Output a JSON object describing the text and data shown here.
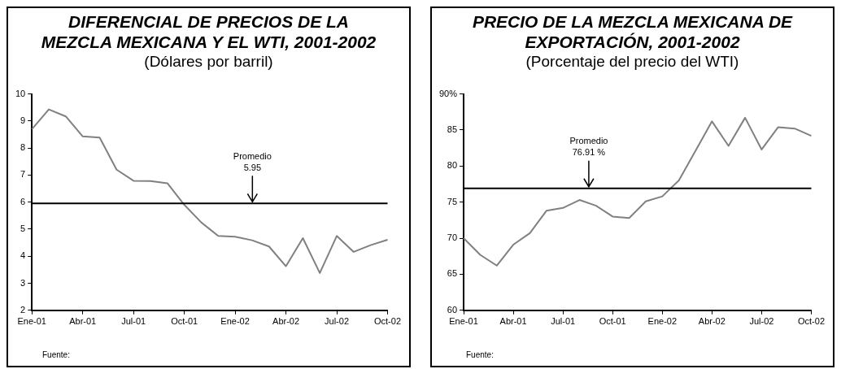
{
  "chart_data": [
    {
      "type": "line",
      "title": "DIFERENCIAL DE PRECIOS DE LA MEZCLA MEXICANA Y EL WTI, 2001-2002",
      "subtitle": "(Dólares por barril)",
      "categories": [
        "Ene-01",
        null,
        null,
        "Abr-01",
        null,
        null,
        "Jul-01",
        null,
        null,
        "Oct-01",
        null,
        null,
        "Ene-02",
        null,
        null,
        "Abr-02",
        null,
        null,
        "Jul-02",
        null,
        null,
        "Oct-02"
      ],
      "series": [
        {
          "color": "#808080",
          "values": [
            8.7,
            9.43,
            9.17,
            8.43,
            8.39,
            7.2,
            6.79,
            6.78,
            6.7,
            5.9,
            5.25,
            4.75,
            4.72,
            4.59,
            4.36,
            3.63,
            4.67,
            3.38,
            4.75,
            4.16,
            4.41,
            4.61
          ]
        }
      ],
      "ylim": [
        2,
        10
      ],
      "yticks": [
        2,
        3,
        4,
        5,
        6,
        7,
        8,
        9,
        10
      ],
      "grid": false,
      "legend": false,
      "marker": "none",
      "ref_lines": [
        {
          "axis": "y",
          "value": 5.95,
          "label": "Promedio\n5.95",
          "color": "#000000"
        }
      ],
      "annotations": [
        "Fuente:"
      ]
    },
    {
      "type": "line",
      "title": "PRECIO DE LA MEZCLA MEXICANA DE EXPORTACIÓN, 2001-2002",
      "subtitle": "(Porcentaje del precio del WTI)",
      "categories": [
        "Ene-01",
        null,
        null,
        "Abr-01",
        null,
        null,
        "Jul-01",
        null,
        null,
        "Oct-01",
        null,
        null,
        "Ene-02",
        null,
        null,
        "Abr-02",
        null,
        null,
        "Jul-02",
        null,
        null,
        "Oct-02"
      ],
      "series": [
        {
          "color": "#808080",
          "values": [
            70,
            67.7,
            66.2,
            69.1,
            70.7,
            73.8,
            74.2,
            75.3,
            74.5,
            73,
            72.8,
            75.1,
            75.8,
            78,
            82.1,
            86.2,
            82.8,
            86.7,
            82.3,
            85.4,
            85.2,
            84.2
          ]
        }
      ],
      "ylim": [
        60,
        90
      ],
      "yticks": [
        60,
        65,
        70,
        75,
        80,
        85,
        {
          "value": 90,
          "label": "90%"
        }
      ],
      "grid": false,
      "legend": false,
      "marker": "none",
      "ref_lines": [
        {
          "axis": "y",
          "value": 76.91,
          "label": "Promedio\n76.91 %",
          "color": "#000000"
        }
      ],
      "annotations": [
        "Fuente:"
      ]
    }
  ]
}
